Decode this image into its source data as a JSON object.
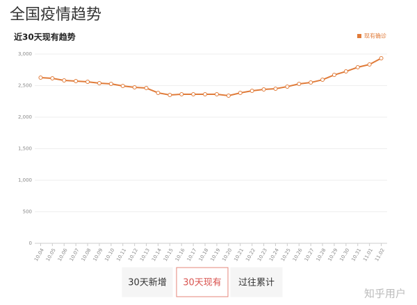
{
  "page_title": "全国疫情趋势",
  "chart_data": {
    "type": "line",
    "title": "近30天现有趋势",
    "categories": [
      "10.04",
      "10.05",
      "10.06",
      "10.07",
      "10.08",
      "10.09",
      "10.10",
      "10.11",
      "10.12",
      "10.13",
      "10.14",
      "10.15",
      "10.16",
      "10.17",
      "10.18",
      "10.19",
      "10.20",
      "10.21",
      "10.22",
      "10.23",
      "10.24",
      "10.25",
      "10.26",
      "10.27",
      "10.28",
      "10.29",
      "10.30",
      "10.31",
      "11.01",
      "11.02"
    ],
    "series": [
      {
        "name": "现有确诊",
        "color": "#e07b39",
        "values": [
          2626,
          2615,
          2582,
          2571,
          2560,
          2538,
          2527,
          2494,
          2472,
          2461,
          2385,
          2352,
          2363,
          2363,
          2363,
          2363,
          2341,
          2385,
          2418,
          2440,
          2451,
          2484,
          2527,
          2549,
          2593,
          2670,
          2725,
          2791,
          2835,
          2934
        ]
      }
    ],
    "ylim": [
      0,
      3000
    ],
    "yticks": [
      0,
      500,
      {
        "value": 1000,
        "label": "1,000"
      },
      {
        "value": 1500,
        "label": "1,500"
      },
      {
        "value": 2000,
        "label": "2,000"
      },
      {
        "value": 2500,
        "label": "2,500"
      },
      {
        "value": 3000,
        "label": "3,000"
      }
    ],
    "grid": true,
    "legend": "top-right"
  },
  "buttons": [
    "30天新增",
    "30天现有",
    "过往累计"
  ],
  "selected_button": 1,
  "watermark": "知乎用户"
}
